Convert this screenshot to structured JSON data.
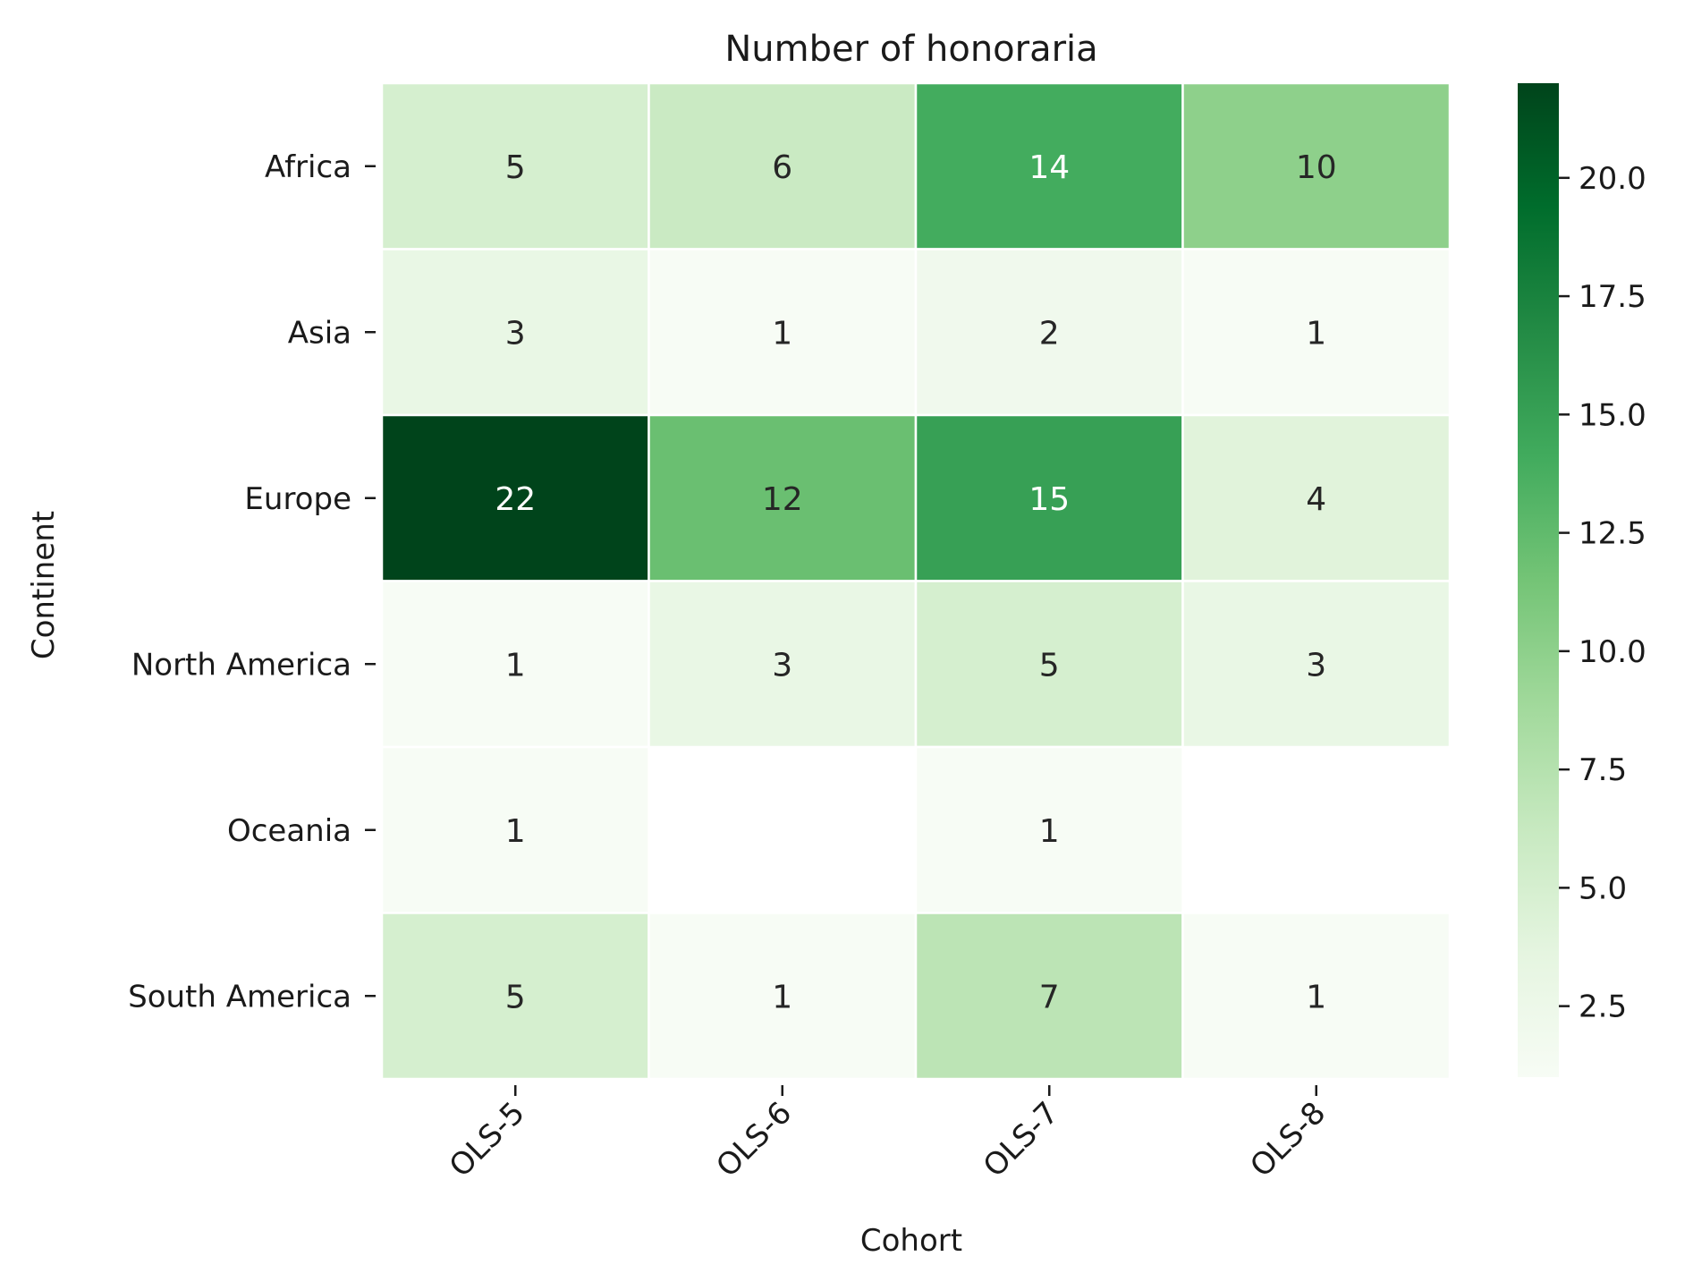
{
  "chart_data": {
    "type": "heatmap",
    "title": "Number of honoraria",
    "xlabel": "Cohort",
    "ylabel": "Continent",
    "columns": [
      "OLS-5",
      "OLS-6",
      "OLS-7",
      "OLS-8"
    ],
    "rows": [
      "Africa",
      "Asia",
      "Europe",
      "North America",
      "Oceania",
      "South America"
    ],
    "values": [
      [
        5,
        6,
        14,
        10
      ],
      [
        3,
        1,
        2,
        1
      ],
      [
        22,
        12,
        15,
        4
      ],
      [
        1,
        3,
        5,
        3
      ],
      [
        1,
        null,
        1,
        null
      ],
      [
        5,
        1,
        7,
        1
      ]
    ],
    "colorbar": {
      "min": 1,
      "max": 22,
      "ticks": [
        2.5,
        5.0,
        7.5,
        10.0,
        12.5,
        15.0,
        17.5,
        20.0
      ],
      "tick_labels": [
        "2.5",
        "5.0",
        "7.5",
        "10.0",
        "12.5",
        "15.0",
        "17.5",
        "20.0"
      ],
      "colormap": [
        "#f7fcf5",
        "#e5f5e0",
        "#c7e9c0",
        "#a1d99b",
        "#74c476",
        "#41ab5d",
        "#238b45",
        "#006d2c",
        "#00441b"
      ]
    },
    "annotations": true,
    "cell_border_color": "#ffffff",
    "grid": false
  }
}
